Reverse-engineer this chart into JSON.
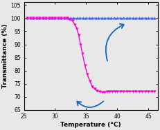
{
  "title": "",
  "xlabel": "Temperature (°C)",
  "ylabel": "Transmittance (%)",
  "xlim": [
    25,
    46.5
  ],
  "ylim": [
    65,
    106
  ],
  "xticks": [
    25,
    30,
    35,
    40,
    45
  ],
  "yticks": [
    65,
    70,
    75,
    80,
    85,
    90,
    95,
    100,
    105
  ],
  "flat_line": {
    "x": [
      25.5,
      26,
      26.5,
      27,
      27.5,
      28,
      28.5,
      29,
      29.5,
      30,
      30.5,
      31,
      31.5,
      32,
      32.5,
      33,
      33.5,
      34,
      34.5,
      35,
      35.5,
      36,
      36.5,
      37,
      37.5,
      38,
      38.5,
      39,
      39.5,
      40,
      40.5,
      41,
      41.5,
      42,
      42.5,
      43,
      43.5,
      44,
      44.5,
      45,
      45.5,
      46
    ],
    "y": [
      100,
      100,
      100,
      100,
      100,
      100,
      100,
      100,
      100,
      100,
      100,
      100,
      100,
      100,
      100,
      100,
      100,
      100,
      100,
      100,
      100,
      100,
      100,
      100,
      100,
      100,
      100,
      100,
      100,
      100,
      100,
      100,
      100,
      100,
      100,
      100,
      100,
      100,
      100,
      100,
      100,
      100
    ],
    "color": "#4169E1",
    "marker": "^",
    "markersize": 2.8,
    "linewidth": 1.0
  },
  "sigmoid_line": {
    "x": [
      25.5,
      26,
      26.5,
      27,
      27.5,
      28,
      28.5,
      29,
      29.5,
      30,
      30.5,
      31,
      31.5,
      32,
      32.3,
      32.8,
      33.2,
      33.5,
      33.8,
      34.1,
      34.4,
      34.8,
      35.2,
      35.6,
      36.0,
      36.4,
      36.8,
      37.2,
      37.6,
      38.0,
      38.4,
      38.8,
      39.2,
      39.6,
      40,
      40.5,
      41,
      41.5,
      42,
      42.5,
      43,
      43.5,
      44,
      44.5,
      45,
      45.5,
      46
    ],
    "y": [
      100,
      100,
      100,
      100,
      100,
      100,
      100,
      100,
      100,
      100,
      100,
      100,
      100,
      100,
      99.5,
      99,
      97.5,
      96,
      93.5,
      90,
      86.5,
      82,
      78.5,
      76,
      74,
      73,
      72.2,
      72,
      71.8,
      71.8,
      72,
      72,
      72,
      72,
      72,
      72,
      72,
      72,
      72,
      72,
      72,
      72,
      72,
      72,
      72,
      72,
      72
    ],
    "color": "#FF00CC",
    "marker": "v",
    "markersize": 2.8,
    "linewidth": 1.0
  },
  "arrow_color": "#1565C0",
  "bgcolor": "#e8e8e8"
}
